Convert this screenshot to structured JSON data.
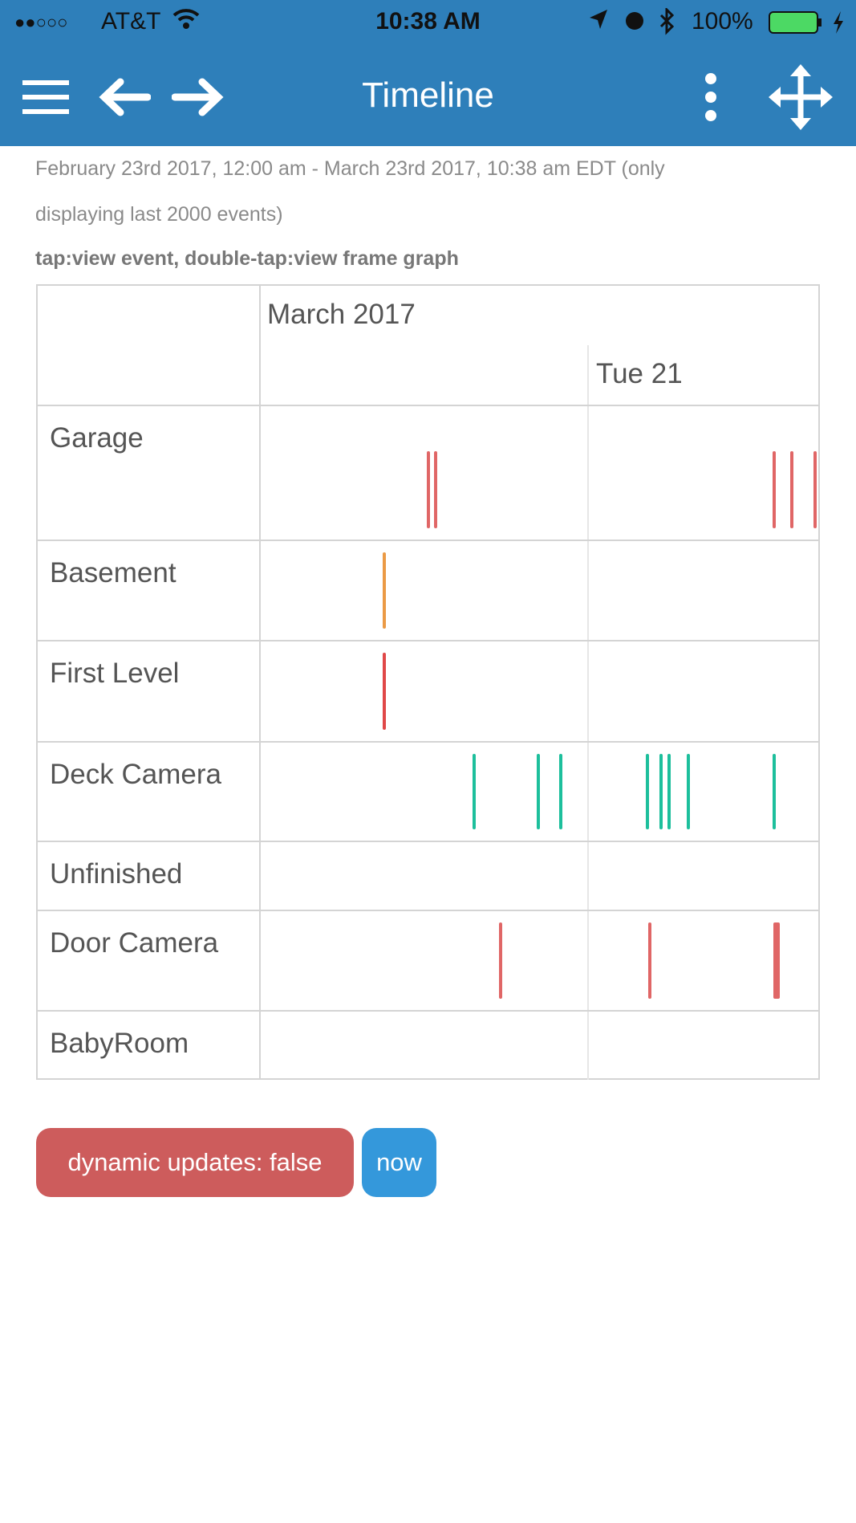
{
  "status_bar": {
    "signal": "●●○○○",
    "carrier": "AT&T",
    "time": "10:38 AM",
    "battery": "100%",
    "icons": [
      "wifi-icon",
      "location-icon",
      "alarm-icon",
      "bluetooth-icon",
      "battery-icon",
      "charging-icon"
    ]
  },
  "header": {
    "title": "Timeline",
    "icons": [
      "menu-icon",
      "back-arrow-icon",
      "forward-arrow-icon",
      "more-vertical-icon",
      "move-icon"
    ]
  },
  "range_text_1": "February 23rd 2017, 12:00 am - March 23rd 2017, 10:38 am  EDT  (only",
  "range_text_2": "displaying last 2000 events)",
  "hint": "tap:view event, double-tap:view frame graph",
  "colors": {
    "header": "#2e7fba",
    "garage": "#e06666",
    "basement": "#eb9a45",
    "first_level": "#e04848",
    "deck": "#1dbf9c",
    "door": "#e06666",
    "dynamic_button": "#cd5c5c",
    "now_button": "#3498db"
  },
  "chart_data": {
    "type": "timeline",
    "axis_labels": {
      "month": "March 2017",
      "day": "Tue 21"
    },
    "day_marker": "2017-03-21T00:00",
    "xlim": [
      "2017-03-20T12:00",
      "2017-03-21T08:30"
    ],
    "rows": [
      {
        "name": "Garage",
        "color": "#e06666",
        "events": [
          "2017-03-20T18:09",
          "2017-03-20T18:25",
          "2017-03-21T06:49",
          "2017-03-21T07:29",
          "2017-03-21T08:19"
        ]
      },
      {
        "name": "Basement",
        "color": "#eb9a45",
        "events": [
          "2017-03-20T16:32"
        ]
      },
      {
        "name": "First Level",
        "color": "#e04848",
        "events": [
          "2017-03-20T16:32"
        ]
      },
      {
        "name": "Deck Camera",
        "color": "#1dbf9c",
        "events": [
          "2017-03-20T19:49",
          "2017-03-20T22:11",
          "2017-03-20T23:00",
          "2017-03-21T02:10",
          "2017-03-21T02:40",
          "2017-03-21T02:59",
          "2017-03-21T03:40",
          "2017-03-21T06:49"
        ]
      },
      {
        "name": "Unfinished",
        "color": "#e06666",
        "events": []
      },
      {
        "name": "Door Camera",
        "color": "#e06666",
        "events": [
          "2017-03-20T20:47",
          "2017-03-21T02:15",
          "2017-03-21T06:55"
        ]
      },
      {
        "name": "BabyRoom",
        "color": "#e06666",
        "events": []
      }
    ]
  },
  "buttons": {
    "dynamic": "dynamic updates: false",
    "now": "now"
  }
}
